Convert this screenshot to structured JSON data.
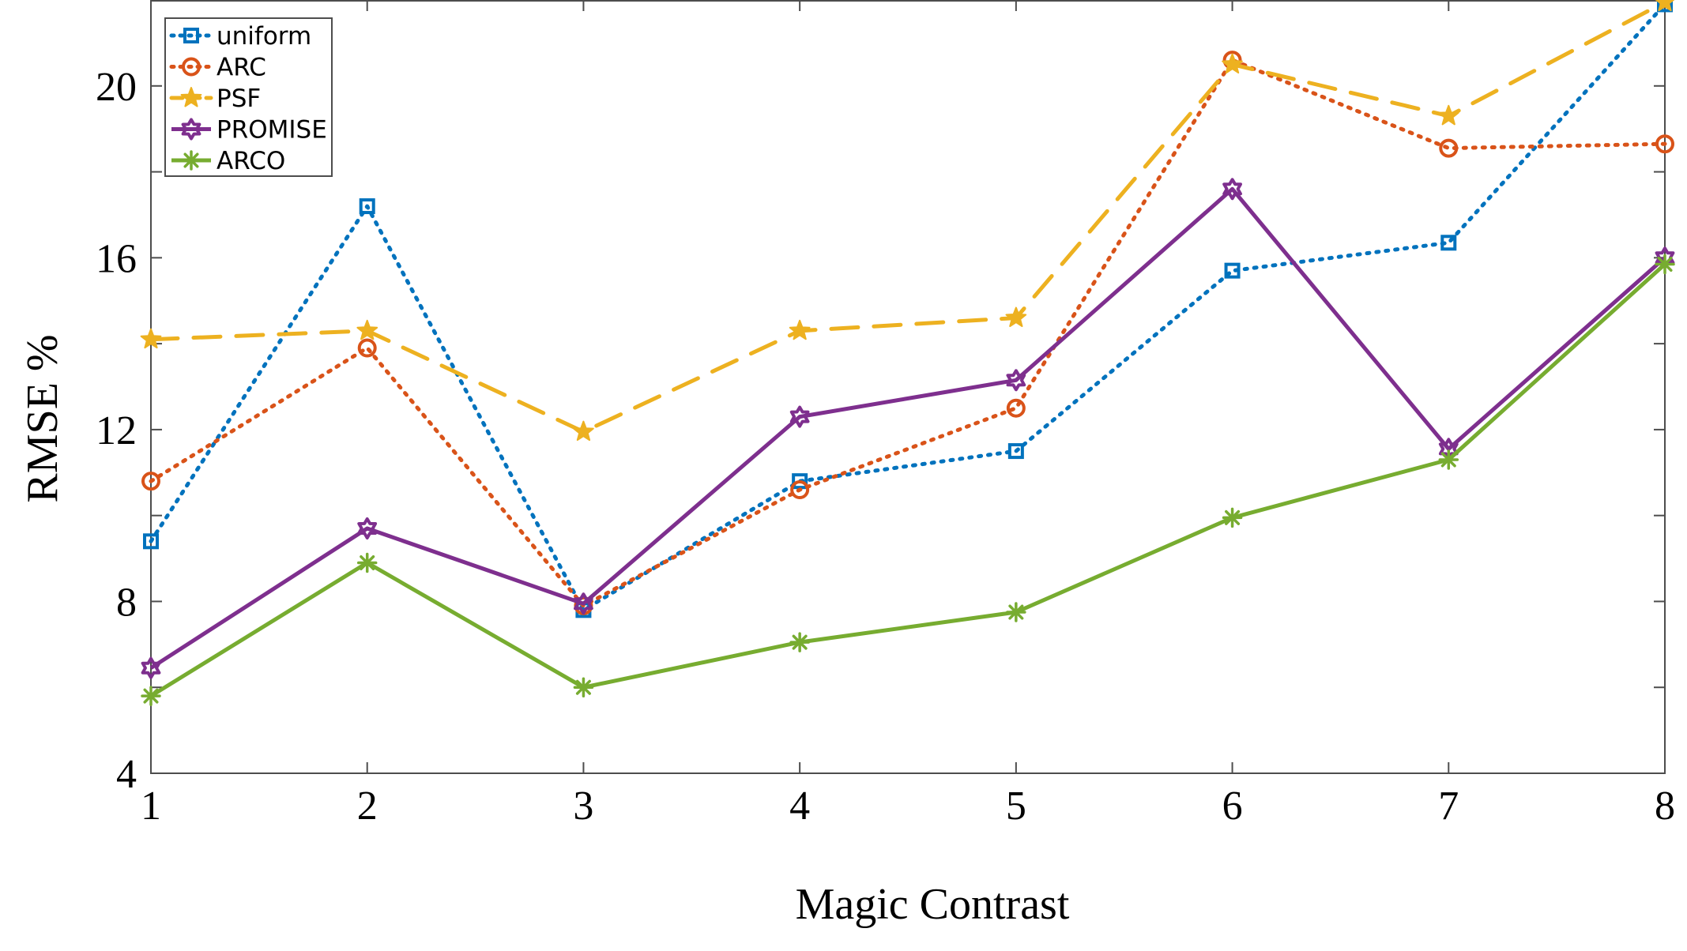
{
  "chart_data": {
    "type": "line",
    "title": "",
    "xlabel": "Magic Contrast",
    "ylabel": "RMSE %",
    "x": [
      1,
      2,
      3,
      4,
      5,
      6,
      7,
      8
    ],
    "xlim": [
      1,
      8
    ],
    "ylim": [
      4,
      22
    ],
    "xticks": [
      1,
      2,
      3,
      4,
      5,
      6,
      7,
      8
    ],
    "yticks": [
      4,
      8,
      12,
      16,
      20
    ],
    "yticks_minor": [
      6,
      10,
      14,
      18
    ],
    "grid": false,
    "legend_position": "top-left",
    "series": [
      {
        "name": "uniform",
        "color": "#0072BD",
        "dash": "dotted",
        "marker": "square",
        "values": [
          9.4,
          17.2,
          7.8,
          10.8,
          11.5,
          15.7,
          16.35,
          21.9
        ]
      },
      {
        "name": "ARC",
        "color": "#D95319",
        "dash": "dotted",
        "marker": "circle",
        "values": [
          10.8,
          13.9,
          7.9,
          10.6,
          12.5,
          20.6,
          18.55,
          18.65
        ]
      },
      {
        "name": "PSF",
        "color": "#EDB120",
        "dash": "dashed",
        "marker": "star",
        "values": [
          14.1,
          14.3,
          11.95,
          14.3,
          14.6,
          20.5,
          19.3,
          21.95
        ]
      },
      {
        "name": "PROMISE",
        "color": "#7E2F8E",
        "dash": "solid",
        "marker": "hexagram",
        "values": [
          6.45,
          9.7,
          7.95,
          12.3,
          13.15,
          17.6,
          11.55,
          16.0
        ]
      },
      {
        "name": "ARCO",
        "color": "#77AC30",
        "dash": "solid",
        "marker": "asterisk",
        "values": [
          5.8,
          8.9,
          6.0,
          7.05,
          7.75,
          9.95,
          11.3,
          15.85
        ]
      }
    ]
  }
}
